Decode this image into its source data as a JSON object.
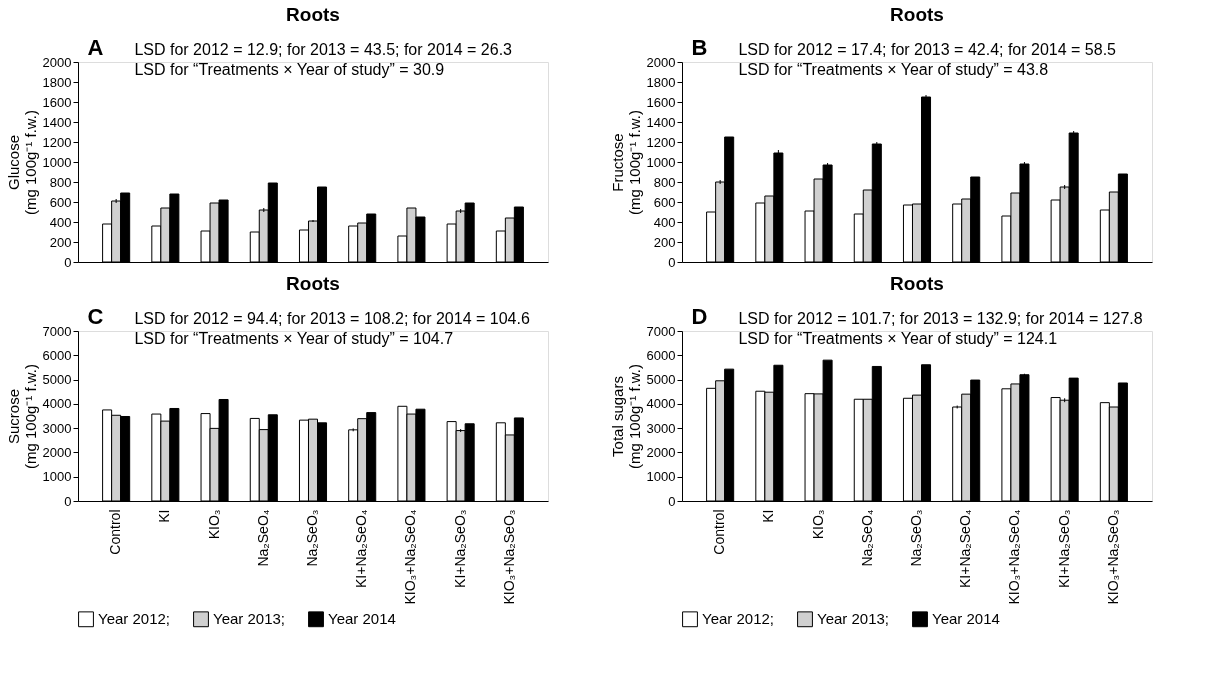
{
  "chart_data": [
    {
      "type": "bar",
      "title": "Roots",
      "ylabel": "Glucose\n(mg 100g⁻¹ f.w.)",
      "annotations": [
        "A",
        "LSD for 2012 = 12.9; for 2013 = 43.5; for 2014 = 26.3",
        "LSD for “Treatments × Year of study” = 30.9"
      ],
      "categories": [
        null,
        null,
        null,
        null,
        null,
        null,
        null,
        null,
        null
      ],
      "series": [
        {
          "color": "#ffffff",
          "values": [
            380,
            360,
            310,
            300,
            320,
            360,
            260,
            380,
            310
          ]
        },
        {
          "color": "#d0d0d0",
          "values": [
            610,
            540,
            590,
            520,
            410,
            390,
            540,
            510,
            440
          ],
          "errors": [
            20,
            null,
            null,
            20,
            10,
            null,
            null,
            20,
            null
          ]
        },
        {
          "color": "#000000",
          "values": [
            690,
            680,
            620,
            790,
            750,
            480,
            450,
            590,
            550
          ]
        }
      ],
      "ylim": [
        0,
        2000
      ],
      "yticks": [
        0,
        200,
        400,
        600,
        800,
        1000,
        1200,
        1400,
        1600,
        1800,
        2000
      ],
      "grid": false,
      "legend": false,
      "tick_labels": "y"
    },
    {
      "type": "bar",
      "title": "Roots",
      "ylabel": "Fructose\n(mg 100g⁻¹ f.w.)",
      "annotations": [
        "B",
        "LSD for 2012 = 17.4; for 2013 = 42.4; for 2014 = 58.5",
        "LSD for “Treatments × Year of study” = 43.8"
      ],
      "categories": [
        null,
        null,
        null,
        null,
        null,
        null,
        null,
        null,
        null
      ],
      "series": [
        {
          "color": "#ffffff",
          "values": [
            500,
            590,
            510,
            480,
            570,
            580,
            460,
            620,
            520
          ]
        },
        {
          "color": "#d0d0d0",
          "values": [
            800,
            660,
            830,
            720,
            580,
            630,
            690,
            750,
            700
          ],
          "errors": [
            20,
            null,
            null,
            null,
            null,
            null,
            null,
            20,
            null
          ]
        },
        {
          "color": "#000000",
          "values": [
            1250,
            1090,
            970,
            1180,
            1650,
            850,
            980,
            1290,
            880
          ],
          "errors": [
            null,
            30,
            20,
            20,
            20,
            null,
            20,
            20,
            null
          ]
        }
      ],
      "ylim": [
        0,
        2000
      ],
      "yticks": [
        0,
        200,
        400,
        600,
        800,
        1000,
        1200,
        1400,
        1600,
        1800,
        2000
      ],
      "grid": false,
      "legend": false,
      "tick_labels": "y"
    },
    {
      "type": "bar",
      "title": "Roots",
      "ylabel": "Sucrose\n(mg 100g⁻¹ f.w.)",
      "annotations": [
        "C",
        "LSD for 2012 = 94.4; for 2013 = 108.2; for 2014 = 104.6",
        "LSD for “Treatments × Year of study” = 104.7"
      ],
      "categories": [
        "Control",
        "KI",
        "KIO₃",
        "Na₂SeO₄",
        "Na₂SeO₃",
        "KI+Na₂SeO₄",
        "KIO₃+Na₂SeO₄",
        "KI+Na₂SeO₃",
        "KIO₃+Na₂SeO₃"
      ],
      "series": [
        {
          "name": "Year 2012;",
          "color": "#ffffff",
          "values": [
            3750,
            3580,
            3600,
            3400,
            3330,
            2930,
            3900,
            3270,
            3220
          ],
          "errors": [
            null,
            null,
            null,
            null,
            null,
            60,
            null,
            null,
            null
          ]
        },
        {
          "name": "Year 2013;",
          "color": "#d0d0d0",
          "values": [
            3530,
            3290,
            2990,
            2940,
            3370,
            3390,
            3580,
            2900,
            2720
          ],
          "errors": [
            null,
            null,
            null,
            null,
            null,
            null,
            null,
            60,
            null
          ]
        },
        {
          "name": "Year 2014",
          "color": "#000000",
          "values": [
            3480,
            3810,
            4180,
            3550,
            3220,
            3640,
            3780,
            3180,
            3420
          ]
        }
      ],
      "ylim": [
        0,
        7000
      ],
      "yticks": [
        0,
        1000,
        2000,
        3000,
        4000,
        5000,
        6000,
        7000
      ],
      "grid": false,
      "legend": "bottom"
    },
    {
      "type": "bar",
      "title": "Roots",
      "ylabel": "Total sugars\n(mg 100g⁻¹ f.w.)",
      "annotations": [
        "D",
        "LSD for 2012 = 101.7; for 2013 = 132.9; for 2014 = 127.8",
        "LSD for “Treatments × Year of study” = 124.1"
      ],
      "categories": [
        "Control",
        "KI",
        "KIO₃",
        "Na₂SeO₄",
        "Na₂SeO₃",
        "KI+Na₂SeO₄",
        "KIO₃+Na₂SeO₄",
        "KI+Na₂SeO₃",
        "KIO₃+Na₂SeO₃"
      ],
      "series": [
        {
          "name": "Year 2012;",
          "color": "#ffffff",
          "values": [
            4640,
            4520,
            4420,
            4190,
            4230,
            3870,
            4620,
            4260,
            4050
          ],
          "errors": [
            null,
            null,
            null,
            null,
            null,
            60,
            null,
            null,
            null
          ]
        },
        {
          "name": "Year 2013;",
          "color": "#d0d0d0",
          "values": [
            4950,
            4480,
            4410,
            4190,
            4360,
            4400,
            4820,
            4150,
            3870
          ],
          "errors": [
            null,
            null,
            null,
            null,
            null,
            null,
            null,
            80,
            null
          ]
        },
        {
          "name": "Year 2014",
          "color": "#000000",
          "values": [
            5430,
            5590,
            5800,
            5540,
            5610,
            4980,
            5200,
            5060,
            4860
          ],
          "errors": [
            null,
            null,
            null,
            null,
            null,
            null,
            40,
            null,
            null
          ]
        }
      ],
      "ylim": [
        0,
        7000
      ],
      "yticks": [
        0,
        1000,
        2000,
        3000,
        4000,
        5000,
        6000,
        7000
      ],
      "grid": false,
      "legend": "bottom"
    }
  ]
}
